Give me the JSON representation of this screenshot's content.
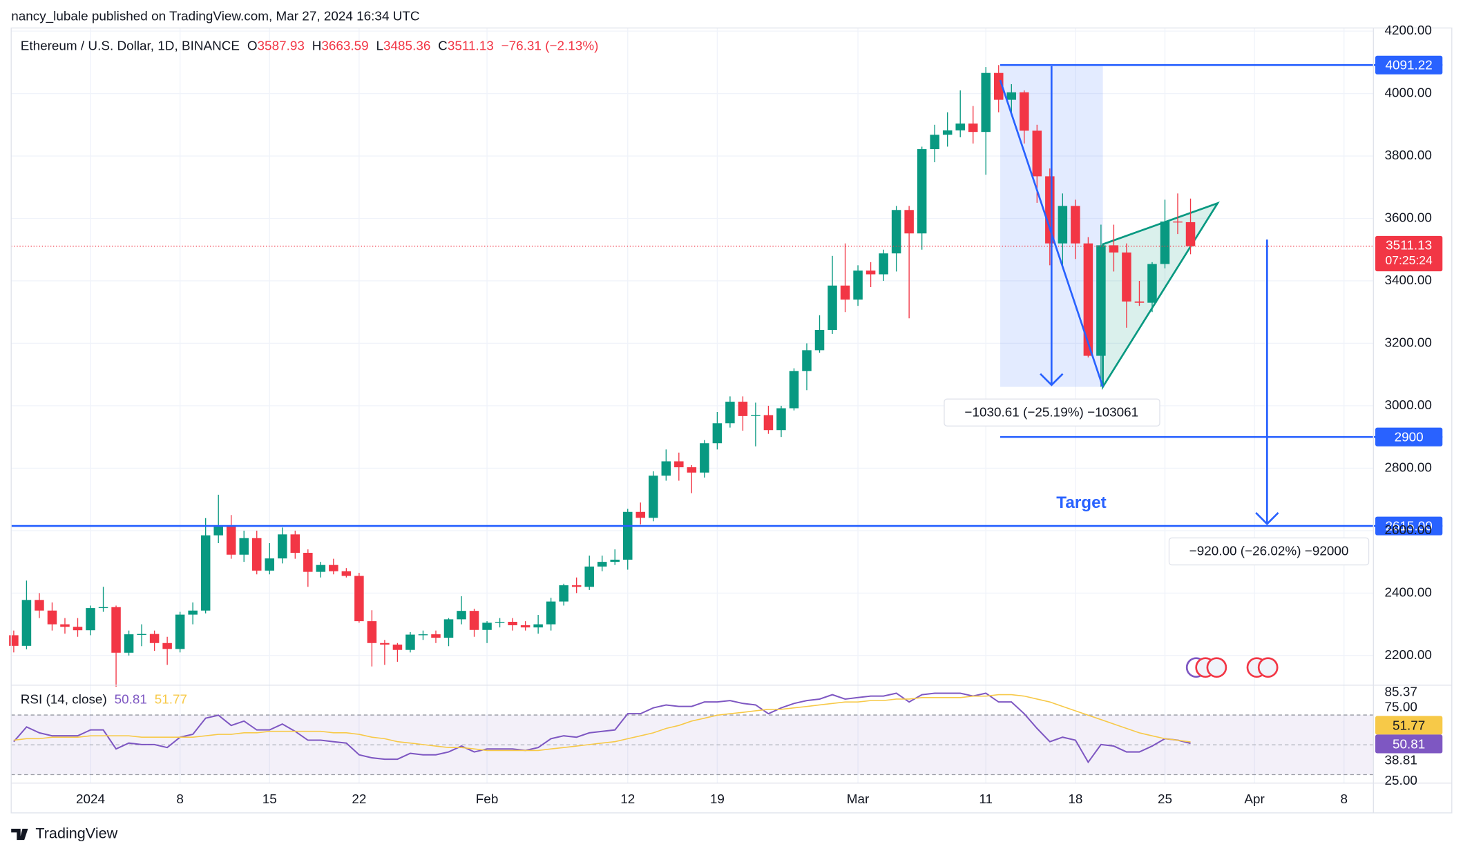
{
  "header": "nancy_lubale published on TradingView.com, Mar 27, 2024 16:34 UTC",
  "footer": "TradingView",
  "chart_data": [
    {
      "type": "candlestick",
      "legend": {
        "name": "Ethereum / U.S. Dollar, 1D, BINANCE",
        "keys": [
          "O",
          "H",
          "L",
          "C"
        ],
        "change": "−76.31 (−2.13%)"
      },
      "up_color": "#089981",
      "down_color": "#f23645",
      "open": [
        2265,
        2231,
        2378,
        2344,
        2300,
        2292,
        2281,
        2352,
        2355,
        2209,
        2268,
        2269,
        2240,
        2221,
        2331,
        2344,
        2585,
        2617,
        2523,
        2576,
        2472,
        2511,
        2588,
        2529,
        2468,
        2490,
        2470,
        2455,
        2310,
        2240,
        2235,
        2218,
        2267,
        2268,
        2257,
        2316,
        2343,
        2282,
        2305,
        2308,
        2297,
        2290,
        2300,
        2373,
        2425,
        2420,
        2485,
        2500,
        2507,
        2660,
        2641,
        2776,
        2822,
        2803,
        2786,
        2880,
        2944,
        3013,
        2967,
        2970,
        2922,
        2992,
        3111,
        3178,
        3243,
        3385,
        3340,
        3433,
        3421,
        3488,
        3627,
        3552,
        3822,
        3868,
        3882,
        3904,
        3877,
        4066,
        3980,
        4004,
        3881,
        3735,
        3520,
        3640,
        3520,
        3160,
        3514,
        3491,
        3334,
        3330,
        3454,
        3590,
        3587.93
      ],
      "high": [
        2280,
        2440,
        2400,
        2370,
        2320,
        2320,
        2360,
        2420,
        2360,
        2280,
        2300,
        2280,
        2260,
        2340,
        2370,
        2640,
        2715,
        2650,
        2600,
        2600,
        2560,
        2610,
        2600,
        2540,
        2500,
        2510,
        2480,
        2465,
        2345,
        2250,
        2240,
        2275,
        2280,
        2280,
        2320,
        2390,
        2350,
        2310,
        2320,
        2320,
        2310,
        2330,
        2385,
        2430,
        2450,
        2520,
        2520,
        2540,
        2670,
        2690,
        2790,
        2860,
        2850,
        2810,
        2890,
        2980,
        3030,
        3030,
        3010,
        3000,
        3000,
        3120,
        3200,
        3290,
        3480,
        3520,
        3450,
        3460,
        3500,
        3640,
        3640,
        3830,
        3900,
        3940,
        4010,
        3960,
        4085,
        4091.22,
        4030,
        4010,
        3900,
        3760,
        3680,
        3660,
        3540,
        3580,
        3580,
        3520,
        3400,
        3460,
        3660,
        3680,
        3663.59
      ],
      "low": [
        2210,
        2220,
        2320,
        2280,
        2270,
        2260,
        2265,
        2340,
        2100,
        2200,
        2230,
        2215,
        2170,
        2210,
        2300,
        2335,
        2560,
        2510,
        2500,
        2460,
        2460,
        2495,
        2510,
        2420,
        2450,
        2460,
        2450,
        2305,
        2165,
        2170,
        2180,
        2210,
        2250,
        2240,
        2230,
        2300,
        2260,
        2240,
        2290,
        2280,
        2280,
        2270,
        2280,
        2360,
        2400,
        2410,
        2470,
        2490,
        2475,
        2620,
        2630,
        2760,
        2760,
        2720,
        2770,
        2860,
        2930,
        2920,
        2870,
        2910,
        2900,
        2985,
        3050,
        3170,
        3230,
        3300,
        3320,
        3380,
        3400,
        3430,
        3280,
        3500,
        3780,
        3830,
        3860,
        3840,
        3740,
        3940,
        3940,
        3840,
        3650,
        3450,
        3450,
        3470,
        3155,
        3060.61,
        3430,
        3250,
        3320,
        3300,
        3440,
        3550,
        3485.36
      ],
      "close": [
        2231,
        2378,
        2344,
        2300,
        2292,
        2281,
        2352,
        2355,
        2209,
        2268,
        2269,
        2240,
        2221,
        2331,
        2344,
        2585,
        2617,
        2523,
        2576,
        2472,
        2511,
        2588,
        2529,
        2468,
        2490,
        2470,
        2455,
        2310,
        2240,
        2235,
        2218,
        2267,
        2268,
        2257,
        2316,
        2343,
        2282,
        2305,
        2308,
        2297,
        2290,
        2300,
        2373,
        2425,
        2420,
        2485,
        2500,
        2507,
        2660,
        2641,
        2776,
        2822,
        2803,
        2786,
        2880,
        2944,
        3013,
        2967,
        2970,
        2922,
        2992,
        3111,
        3178,
        3243,
        3385,
        3340,
        3433,
        3421,
        3488,
        3627,
        3552,
        3822,
        3868,
        3882,
        3904,
        3877,
        4066,
        3980,
        4004,
        3881,
        3735,
        3520,
        3640,
        3520,
        3160,
        3514,
        3491,
        3334,
        3330,
        3454,
        3590,
        3588,
        3511.13
      ],
      "countdown": "07:25:24",
      "xlim": [
        -0.2,
        106.3
      ],
      "xticks": [
        {
          "value": 6,
          "label": "2024"
        },
        {
          "value": 13,
          "label": "8"
        },
        {
          "value": 20,
          "label": "15"
        },
        {
          "value": 27,
          "label": "22"
        },
        {
          "value": 37,
          "label": "Feb"
        },
        {
          "value": 48,
          "label": "12"
        },
        {
          "value": 55,
          "label": "19"
        },
        {
          "value": 66,
          "label": "Mar"
        },
        {
          "value": 76,
          "label": "11"
        },
        {
          "value": 83,
          "label": "18"
        },
        {
          "value": 90,
          "label": "25"
        },
        {
          "value": 97,
          "label": "Apr"
        },
        {
          "value": 104,
          "label": "8"
        }
      ],
      "ylim": [
        2105,
        4210
      ],
      "yticks": [
        {
          "value": 2200,
          "label": "2200.00"
        },
        {
          "value": 2400,
          "label": "2400.00"
        },
        {
          "value": 2600,
          "label": "2600.00"
        },
        {
          "value": 2800,
          "label": "2800.00"
        },
        {
          "value": 3000,
          "label": "3000.00"
        },
        {
          "value": 3200,
          "label": "3200.00"
        },
        {
          "value": 3400,
          "label": "3400.00"
        },
        {
          "value": 3600,
          "label": "3600.00"
        },
        {
          "value": 3800,
          "label": "3800.00"
        },
        {
          "value": 4000,
          "label": "4000.00"
        },
        {
          "value": 4200,
          "label": "4200.00"
        }
      ],
      "target": {
        "value": 2615,
        "label": "2615.00"
      },
      "annotations": {
        "range": "−1030.61 (−25.19%) −103061",
        "projection": "−920.00 (−26.02%) −92000",
        "target": "Target"
      },
      "grid": true
    },
    {
      "type": "line",
      "title": "RSI (14, close)",
      "xlim": [
        -0.2,
        106.3
      ],
      "ylim": [
        20.6,
        90.45
      ],
      "yticks": [
        {
          "value": 85.37,
          "label": "85.37"
        },
        {
          "value": 75,
          "label": "75.00"
        },
        {
          "value": 38.81,
          "label": "38.81"
        },
        {
          "value": 25,
          "label": "25.00"
        }
      ],
      "series": [
        {
          "color": "#7e57c2",
          "values": [
            52,
            62,
            58,
            56,
            56,
            56,
            60,
            60,
            47,
            51,
            50,
            50,
            48,
            55,
            57,
            68,
            70,
            63,
            66,
            60,
            60,
            64,
            59,
            53,
            53,
            52,
            51,
            43,
            41,
            40,
            40,
            44,
            43,
            43,
            45,
            49,
            45,
            47,
            47,
            47,
            46,
            48,
            54,
            56,
            55,
            58,
            59,
            60,
            71,
            71,
            75,
            77,
            76,
            76,
            79,
            79,
            80,
            78,
            77,
            71,
            75,
            78,
            80,
            81,
            84,
            81,
            82,
            83,
            83,
            85,
            79,
            84,
            85,
            85,
            85,
            83,
            85,
            79,
            79,
            71,
            61,
            52,
            55,
            53,
            38,
            50,
            49,
            45,
            45,
            49,
            54,
            53,
            50.81
          ]
        },
        {
          "color": "#f7c948",
          "values": [
            53,
            54,
            54,
            55,
            55,
            55,
            56,
            56,
            56,
            56,
            55,
            55,
            55,
            55,
            55,
            56,
            57,
            57,
            58,
            58,
            59,
            59,
            59,
            59,
            59,
            58,
            58,
            57,
            55,
            54,
            52,
            51,
            50,
            49,
            48,
            48,
            47,
            46,
            46,
            46,
            46,
            46,
            47,
            48,
            49,
            50,
            51,
            52,
            54,
            56,
            58,
            61,
            63,
            66,
            68,
            70,
            71,
            72,
            73,
            74,
            74,
            75,
            76,
            77,
            78,
            79,
            79,
            80,
            80,
            81,
            81,
            82,
            82,
            82,
            82,
            83,
            83,
            84,
            84,
            83,
            81,
            79,
            76,
            73,
            70,
            67,
            64,
            61,
            58,
            56,
            54,
            53,
            51.77
          ]
        }
      ]
    }
  ]
}
